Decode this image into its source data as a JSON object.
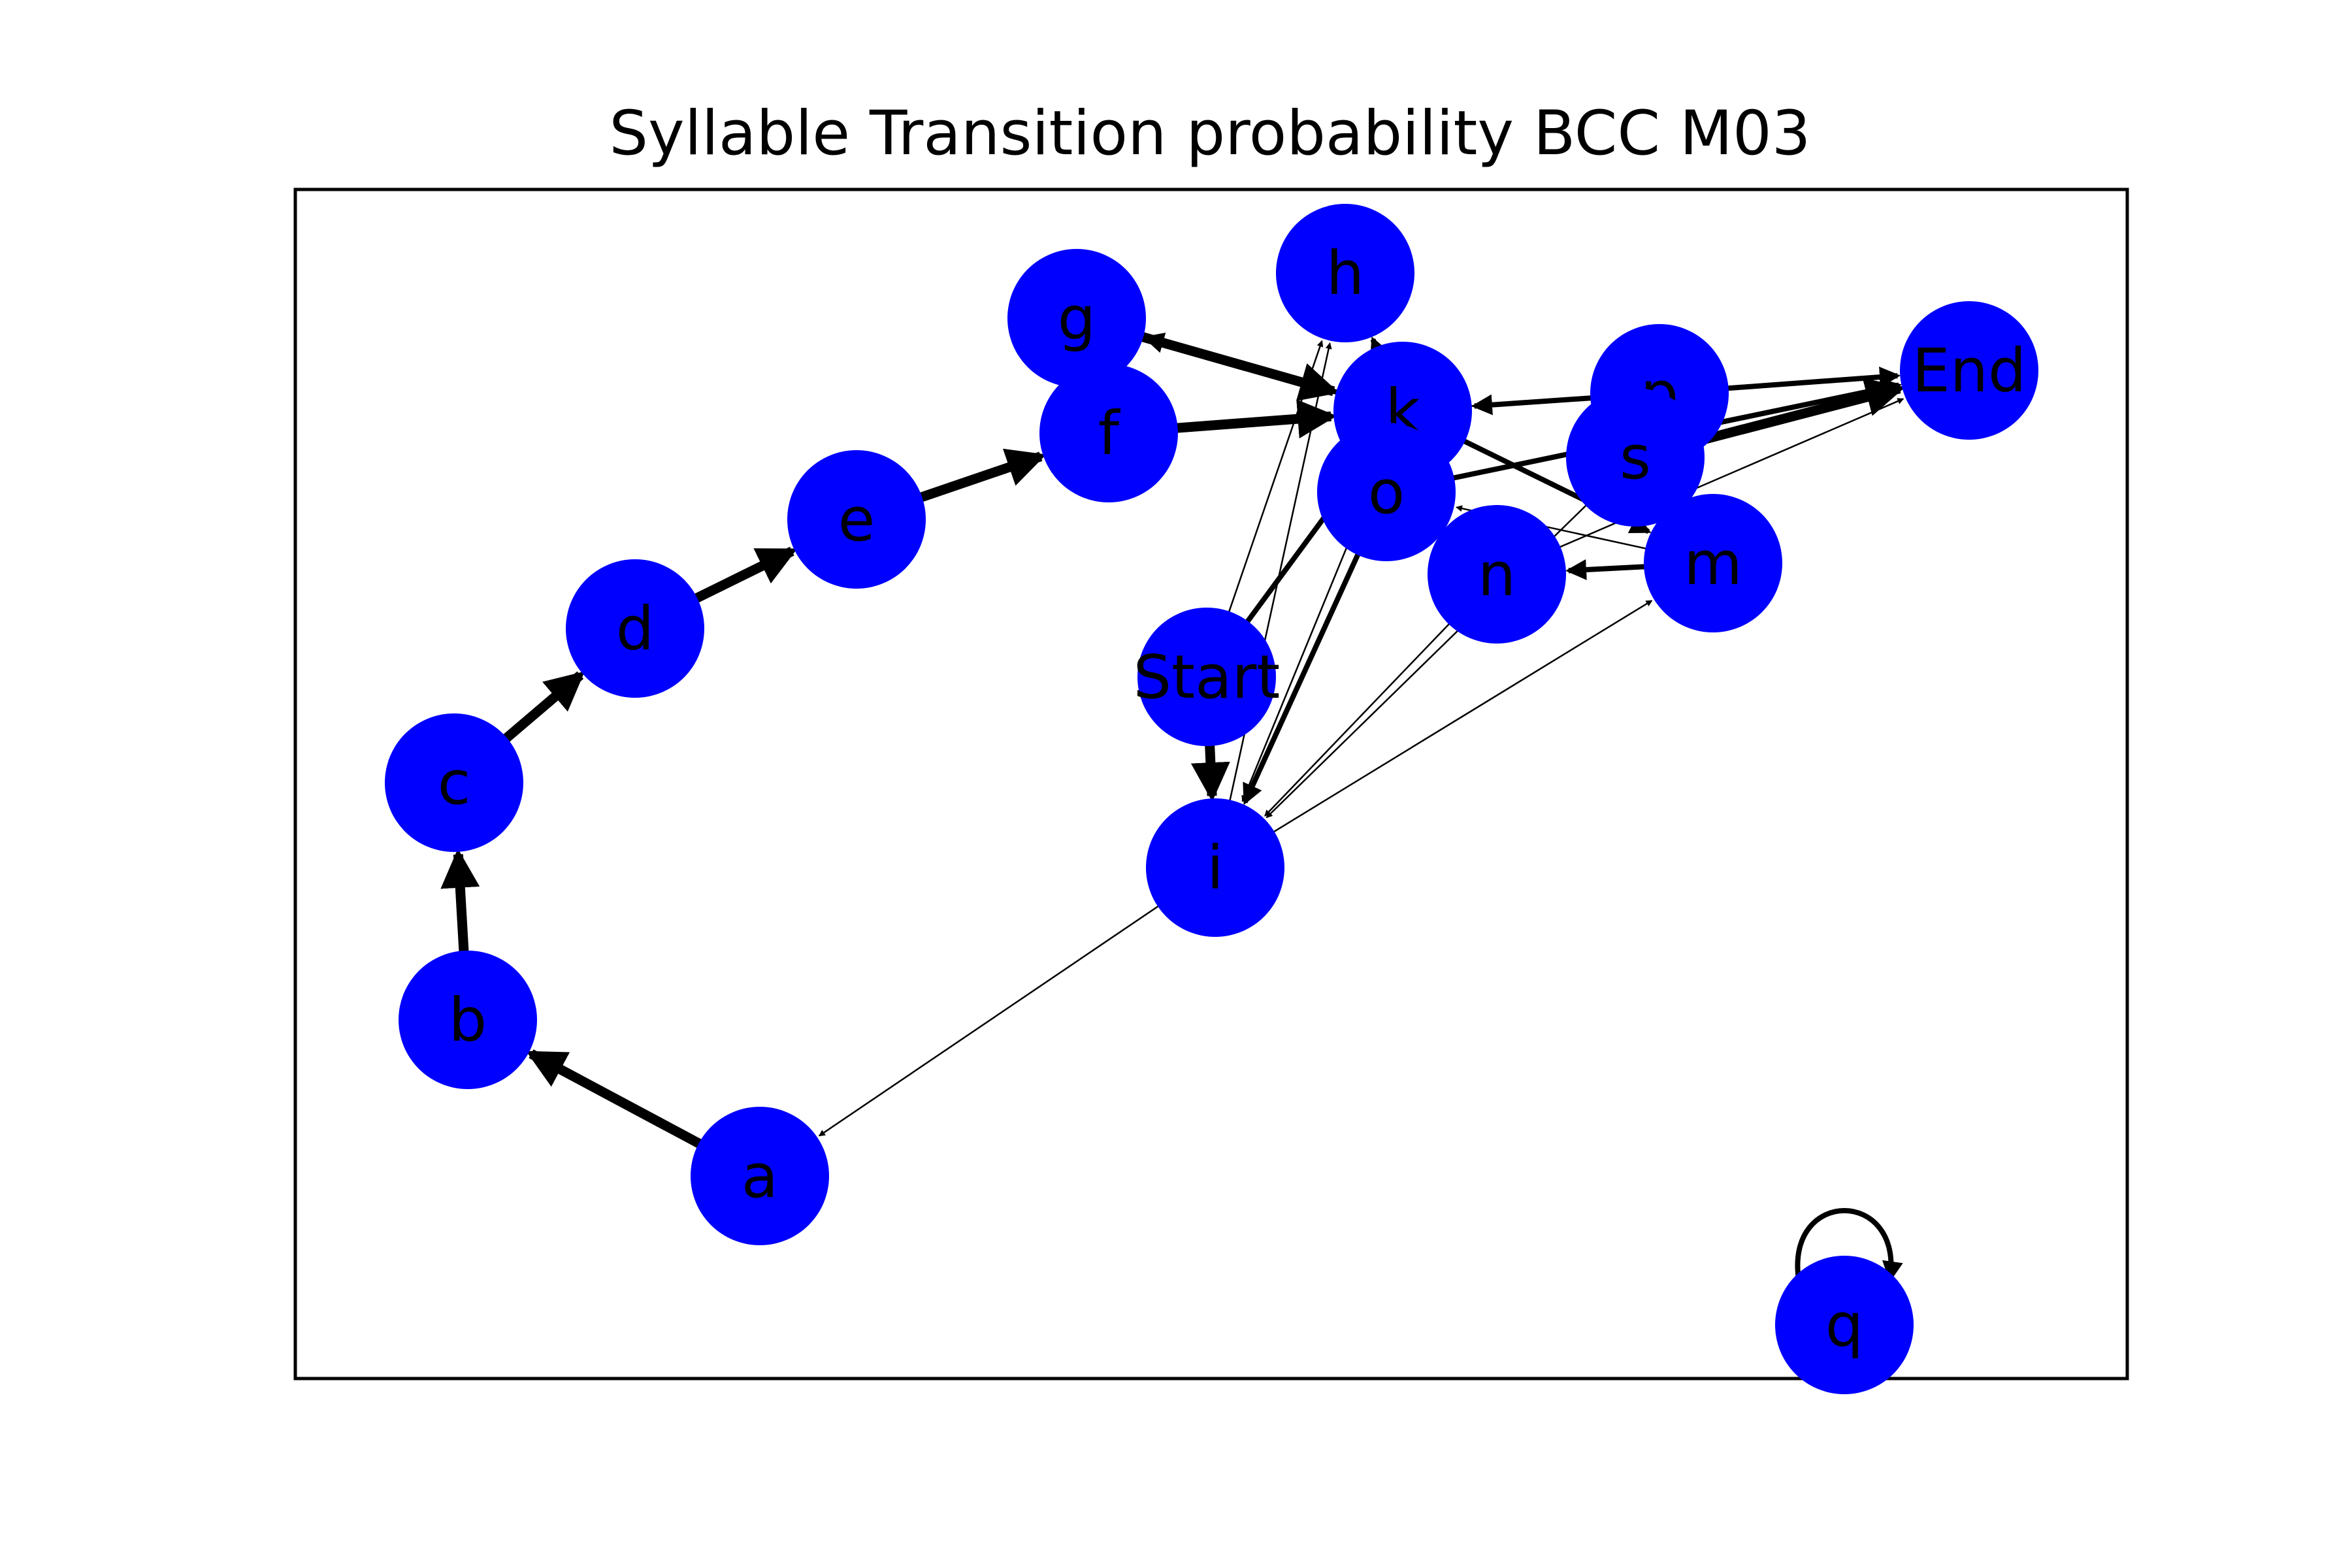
{
  "title": "Syllable Transition probability BCC M03",
  "node_color": "#0000ff",
  "edge_color": "#000000",
  "nodes": [
    {
      "id": "a",
      "label": "a"
    },
    {
      "id": "b",
      "label": "b"
    },
    {
      "id": "c",
      "label": "c"
    },
    {
      "id": "d",
      "label": "d"
    },
    {
      "id": "e",
      "label": "e"
    },
    {
      "id": "f",
      "label": "f"
    },
    {
      "id": "g",
      "label": "g"
    },
    {
      "id": "h",
      "label": "h"
    },
    {
      "id": "i",
      "label": "i"
    },
    {
      "id": "k",
      "label": "k"
    },
    {
      "id": "m",
      "label": "m"
    },
    {
      "id": "n",
      "label": "n"
    },
    {
      "id": "o",
      "label": "o"
    },
    {
      "id": "p",
      "label": "p"
    },
    {
      "id": "q",
      "label": "q"
    },
    {
      "id": "s",
      "label": "s"
    },
    {
      "id": "Start",
      "label": "Start"
    },
    {
      "id": "End",
      "label": "End"
    }
  ],
  "edges": [
    {
      "source": "a",
      "target": "b",
      "weight": "heavy"
    },
    {
      "source": "b",
      "target": "c",
      "weight": "heavy"
    },
    {
      "source": "c",
      "target": "d",
      "weight": "heavy"
    },
    {
      "source": "d",
      "target": "c",
      "weight": "thin"
    },
    {
      "source": "d",
      "target": "e",
      "weight": "heavy"
    },
    {
      "source": "e",
      "target": "d",
      "weight": "thin"
    },
    {
      "source": "e",
      "target": "f",
      "weight": "heavy"
    },
    {
      "source": "f",
      "target": "k",
      "weight": "heavy"
    },
    {
      "source": "g",
      "target": "k",
      "weight": "heavy"
    },
    {
      "source": "k",
      "target": "g",
      "weight": "medium"
    },
    {
      "source": "k",
      "target": "h",
      "weight": "medium"
    },
    {
      "source": "k",
      "target": "m",
      "weight": "medium"
    },
    {
      "source": "k",
      "target": "End",
      "weight": "thin"
    },
    {
      "source": "o",
      "target": "End",
      "weight": "medium"
    },
    {
      "source": "s",
      "target": "End",
      "weight": "heavy"
    },
    {
      "source": "p",
      "target": "End",
      "weight": "medium"
    },
    {
      "source": "p",
      "target": "k",
      "weight": "medium"
    },
    {
      "source": "m",
      "target": "n",
      "weight": "medium"
    },
    {
      "source": "m",
      "target": "o",
      "weight": "thin"
    },
    {
      "source": "n",
      "target": "End",
      "weight": "thin"
    },
    {
      "source": "Start",
      "target": "i",
      "weight": "heavy"
    },
    {
      "source": "Start",
      "target": "k",
      "weight": "medium"
    },
    {
      "source": "Start",
      "target": "h",
      "weight": "thin"
    },
    {
      "source": "i",
      "target": "a",
      "weight": "thin"
    },
    {
      "source": "i",
      "target": "m",
      "weight": "thin"
    },
    {
      "source": "o",
      "target": "i",
      "weight": "medium"
    },
    {
      "source": "k",
      "target": "i",
      "weight": "thin"
    },
    {
      "source": "n",
      "target": "i",
      "weight": "thin"
    },
    {
      "source": "s",
      "target": "i",
      "weight": "thin"
    },
    {
      "source": "i",
      "target": "h",
      "weight": "thin"
    },
    {
      "source": "q",
      "target": "q",
      "weight": "medium"
    }
  ]
}
